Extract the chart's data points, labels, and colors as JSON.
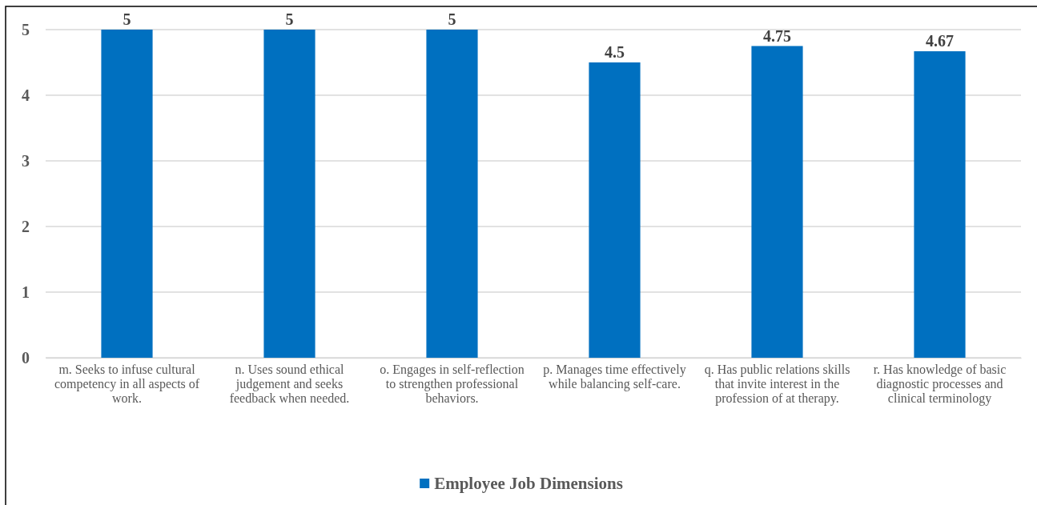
{
  "chart_data": {
    "type": "bar",
    "categories": [
      "m. Seeks to infuse cultural competency in all aspects of work.",
      "n. Uses sound ethical judgement and seeks feedback when needed.",
      "o. Engages in self-reflection to strengthen professional behaviors.",
      "p. Manages time effectively while balancing self-care.",
      "q. Has public relations skills that invite interest in the profession of at therapy.",
      "r. Has knowledge of basic diagnostic processes and clinical terminology"
    ],
    "series": [
      {
        "name": "Employee Job Dimensions",
        "color": "#0070c0",
        "values": [
          5,
          5,
          5,
          4.5,
          4.75,
          4.67
        ]
      }
    ],
    "ylim": [
      0,
      5
    ],
    "yticks": [
      0,
      1,
      2,
      3,
      4,
      5
    ],
    "grid": "y",
    "legend": "bottom",
    "data_labels": true
  }
}
